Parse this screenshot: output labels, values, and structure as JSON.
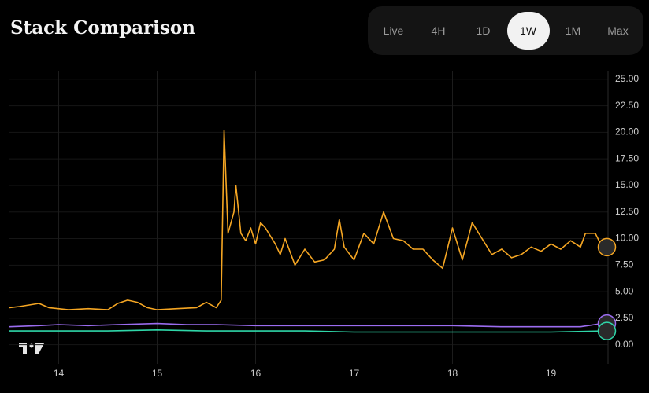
{
  "tabs": [
    "Live",
    "4H",
    "1D",
    "1W",
    "1M",
    "Max"
  ],
  "active_tab": "1W",
  "chart_data": {
    "type": "line",
    "title": "Stack Comparison",
    "xlim": [
      13.5,
      19.58
    ],
    "xticks": [
      14,
      15,
      16,
      17,
      18,
      19
    ],
    "ylim": [
      -1.8,
      25.8
    ],
    "yticks": [
      {
        "value": 0,
        "label": "0.00"
      },
      {
        "value": 2.5,
        "label": "2.50"
      },
      {
        "value": 5,
        "label": "5.00"
      },
      {
        "value": 7.5,
        "label": "7.50"
      },
      {
        "value": 10,
        "label": "10.00"
      },
      {
        "value": 12.5,
        "label": "12.50"
      },
      {
        "value": 15,
        "label": "15.00"
      },
      {
        "value": 17.5,
        "label": "17.50"
      },
      {
        "value": 20,
        "label": "20.00"
      },
      {
        "value": 22.5,
        "label": "22.50"
      },
      {
        "value": 25,
        "label": "25.00"
      }
    ],
    "grid": true,
    "series": [
      {
        "color": "#f5a623",
        "x": [
          13.5,
          13.6,
          13.8,
          13.9,
          14.1,
          14.3,
          14.5,
          14.6,
          14.7,
          14.8,
          14.9,
          15.0,
          15.2,
          15.4,
          15.5,
          15.6,
          15.65,
          15.68,
          15.72,
          15.78,
          15.8,
          15.85,
          15.9,
          15.95,
          16.0,
          16.05,
          16.1,
          16.2,
          16.25,
          16.3,
          16.4,
          16.5,
          16.6,
          16.7,
          16.8,
          16.85,
          16.9,
          17.0,
          17.1,
          17.2,
          17.3,
          17.4,
          17.5,
          17.6,
          17.7,
          17.8,
          17.9,
          18.0,
          18.1,
          18.2,
          18.3,
          18.4,
          18.5,
          18.6,
          18.7,
          18.8,
          18.9,
          19.0,
          19.1,
          19.2,
          19.3,
          19.35,
          19.45,
          19.52
        ],
        "values": [
          3.5,
          3.6,
          3.9,
          3.5,
          3.3,
          3.4,
          3.3,
          3.9,
          4.2,
          4.0,
          3.5,
          3.3,
          3.4,
          3.5,
          4.0,
          3.5,
          4.2,
          20.2,
          10.5,
          12.5,
          15.0,
          10.5,
          9.8,
          11.0,
          9.5,
          11.5,
          11.0,
          9.5,
          8.5,
          10.0,
          7.5,
          9.0,
          7.8,
          8.0,
          9.0,
          11.8,
          9.2,
          8.0,
          10.5,
          9.5,
          12.5,
          10.0,
          9.8,
          9.0,
          9.0,
          8.0,
          7.2,
          11.0,
          8.0,
          11.5,
          10.0,
          8.5,
          9.0,
          8.2,
          8.5,
          9.2,
          8.8,
          9.5,
          9.0,
          9.8,
          9.2,
          10.5,
          10.5,
          9.2
        ]
      },
      {
        "color": "#9b6cf0",
        "x": [
          13.5,
          13.8,
          14.0,
          14.3,
          14.6,
          15.0,
          15.3,
          15.6,
          16.0,
          16.5,
          17.0,
          17.5,
          18.0,
          18.5,
          19.0,
          19.3,
          19.52
        ],
        "values": [
          1.7,
          1.8,
          1.9,
          1.8,
          1.9,
          2.0,
          1.9,
          1.9,
          1.8,
          1.8,
          1.8,
          1.8,
          1.8,
          1.7,
          1.7,
          1.7,
          2.0
        ]
      },
      {
        "color": "#2fd6a8",
        "x": [
          13.5,
          14.0,
          14.5,
          15.0,
          15.5,
          16.0,
          16.5,
          17.0,
          17.5,
          18.0,
          18.5,
          19.0,
          19.52
        ],
        "values": [
          1.3,
          1.3,
          1.3,
          1.4,
          1.3,
          1.3,
          1.3,
          1.2,
          1.2,
          1.2,
          1.2,
          1.2,
          1.3
        ]
      }
    ]
  }
}
